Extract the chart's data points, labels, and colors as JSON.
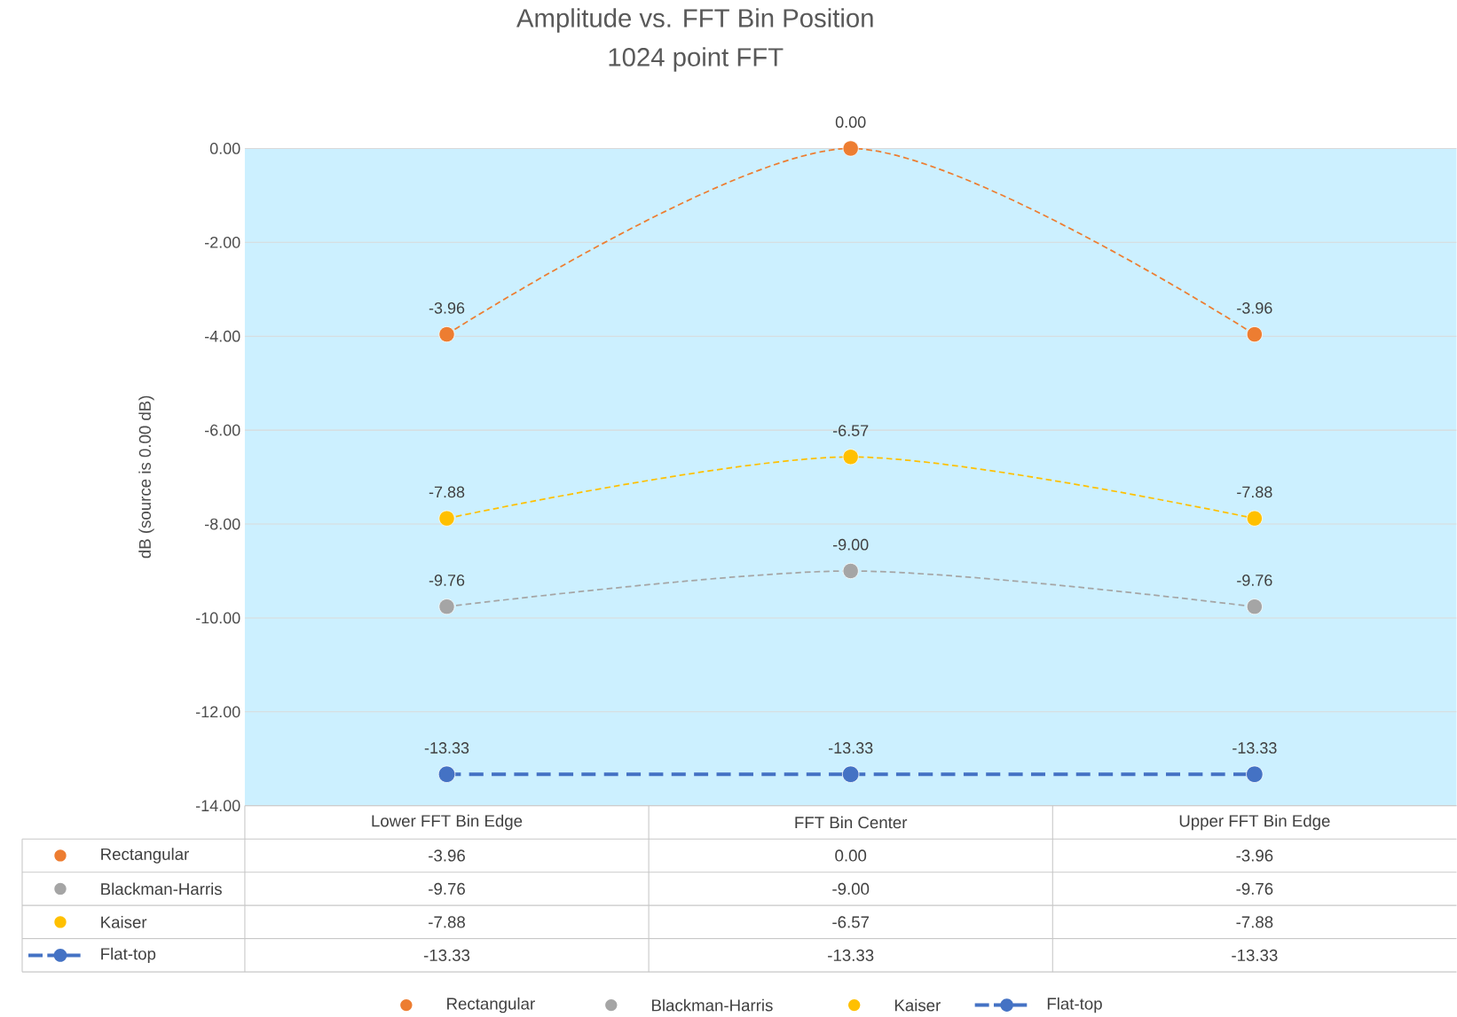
{
  "chart_data": {
    "type": "line",
    "title": "Amplitude vs. FFT Bin Position",
    "subtitle": "1024 point FFT",
    "ylabel": "dB (source is 0.00 dB)",
    "categories": [
      "Lower FFT Bin Edge",
      "FFT Bin Center",
      "Upper FFT Bin Edge"
    ],
    "series": [
      {
        "name": "Rectangular",
        "color": "#ed7d31",
        "values": [
          -3.96,
          0.0,
          -3.96
        ],
        "value_labels": [
          "-3.96",
          "0.00",
          "-3.96"
        ]
      },
      {
        "name": "Blackman-Harris",
        "color": "#a5a5a5",
        "values": [
          -9.76,
          -9.0,
          -9.76
        ],
        "value_labels": [
          "-9.76",
          "-9.00",
          "-9.76"
        ]
      },
      {
        "name": "Kaiser",
        "color": "#ffc000",
        "values": [
          -7.88,
          -6.57,
          -7.88
        ],
        "value_labels": [
          "-7.88",
          "-6.57",
          "-7.88"
        ]
      },
      {
        "name": "Flat-top",
        "color": "#4472c4",
        "values": [
          -13.33,
          -13.33,
          -13.33
        ],
        "value_labels": [
          "-13.33",
          "-13.33",
          "-13.33"
        ]
      }
    ],
    "ylim": [
      -14,
      0
    ],
    "yticks": [
      {
        "value": -14,
        "label": "-14.00"
      },
      {
        "value": -12,
        "label": "-12.00"
      },
      {
        "value": -10,
        "label": "-10.00"
      },
      {
        "value": -8,
        "label": "-8.00"
      },
      {
        "value": -6,
        "label": "-6.00"
      },
      {
        "value": -4,
        "label": "-4.00"
      },
      {
        "value": -2,
        "label": "-2.00"
      },
      {
        "value": 0,
        "label": "0.00"
      }
    ],
    "grid": "y",
    "legend": "bottom",
    "marker": "circle",
    "line_style": "dashed"
  }
}
